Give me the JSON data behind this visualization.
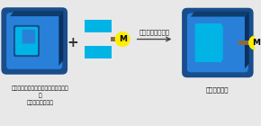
{
  "bg_color": "#e8e8e8",
  "dark_blue_outer": "#1a4d8c",
  "mid_blue": "#1e6bbf",
  "light_blue_face": "#2980d9",
  "cyan_bright": "#00b4e6",
  "dark_blue_top": "#0d3d6e",
  "dark_side": "#0a3060",
  "yellow": "#ffee00",
  "brown_stick": "#8c6a3c",
  "arrow_color": "#444444",
  "text_color": "#111111",
  "label_left_line1": "軸不斉を認識するモノクローナル抗体",
  "label_left_line2": "と",
  "label_left_line3": "金属錯体の複合化",
  "label_right": "人工金属酵素",
  "arrow_label": "キラル環境の誘起",
  "metal_label": "M",
  "plus_color": "#333333"
}
